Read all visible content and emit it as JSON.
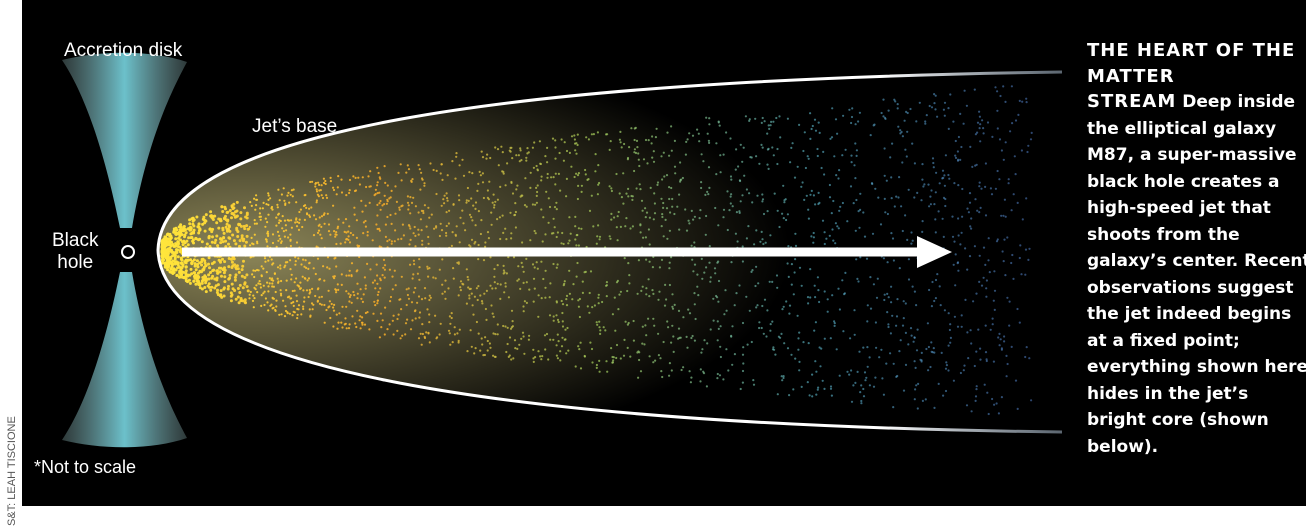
{
  "labels": {
    "accretion_disk": "Accretion disk",
    "jet_base": "Jet’s base",
    "black_hole": [
      "Black",
      "hole"
    ],
    "note": "*Not to scale"
  },
  "credit": "S&T: LEAH TISCIONE",
  "caption": {
    "title": "THE HEART OF THE MATTER STREAM",
    "body": "Deep inside the elliptical galaxy M87, a super-massive black hole creates a high-speed jet that shoots from the galaxy’s center. Recent observations suggest the jet indeed begins at a fixed point; everything shown here hides in the jet’s bright core (shown below)."
  }
}
